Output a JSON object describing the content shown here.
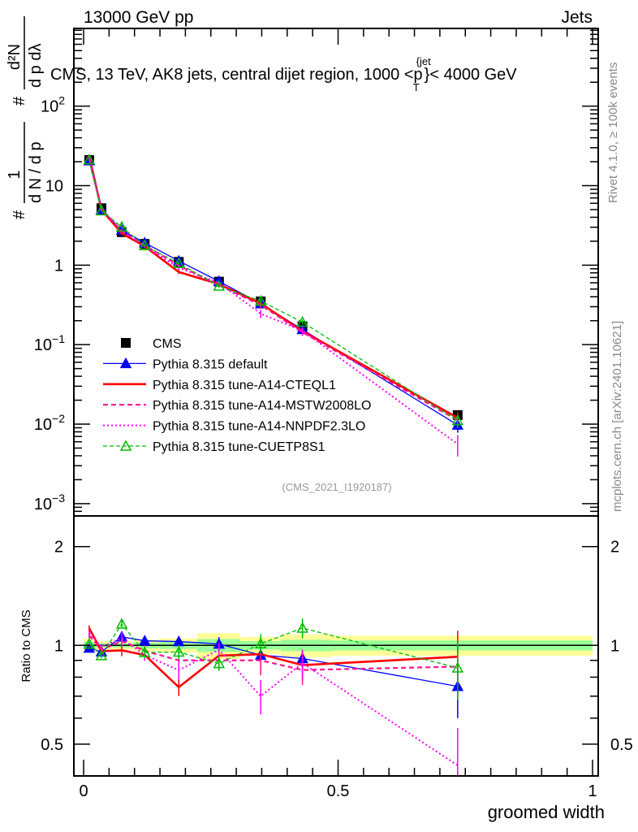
{
  "header": {
    "left": "13000 GeV pp",
    "right": "Jets"
  },
  "side_labels": {
    "rivet": "Rivet 4.1.0, ≥ 100k events",
    "mcplots": "mcplots.cern.ch [arXiv:2401.10621]"
  },
  "chart_data": [
    {
      "type": "line",
      "title": "CMS, 13 TeV, AK8 jets, central dijet region, 1000 <p_T^{jet}< 4000 GeV",
      "title_main": "CMS, 13 TeV, AK8 jets, central dijet region, 1000 <p",
      "title_sup": "{jet",
      "title_sub": "T",
      "title_end": "}< 4000 GeV",
      "ylabel_num": "1",
      "ylabel_den": "d N / d p",
      "ylabel_right_num": "d²N",
      "ylabel_right_den": "d p  dλ",
      "ylabel_hash": "#",
      "yscale": "log",
      "ylim": [
        0.0007,
        950
      ],
      "xlim": [
        -0.02,
        1.01
      ],
      "ytick_labels": [
        {
          "v": 0.001,
          "base": "10",
          "exp": "−3"
        },
        {
          "v": 0.01,
          "base": "10",
          "exp": "−2"
        },
        {
          "v": 0.1,
          "base": "10",
          "exp": "−1"
        },
        {
          "v": 1,
          "base": "1",
          "exp": ""
        },
        {
          "v": 10,
          "base": "10",
          "exp": ""
        },
        {
          "v": 100,
          "base": "10",
          "exp": "2"
        }
      ],
      "annotation": "(CMS_2021_I1920187)",
      "x": [
        0.011,
        0.035,
        0.075,
        0.12,
        0.187,
        0.266,
        0.348,
        0.43,
        0.735
      ],
      "bin_edges": [
        0,
        0.02,
        0.05,
        0.1,
        0.15,
        0.223,
        0.308,
        0.388,
        0.488,
        1.0
      ],
      "data": {
        "name": "CMS",
        "values": [
          21,
          5.2,
          2.6,
          1.85,
          1.1,
          0.62,
          0.35,
          0.17,
          0.013
        ],
        "band_yellow": [
          0.05,
          0.03,
          0.03,
          0.04,
          0.05,
          0.09,
          0.06,
          0.08,
          0.07
        ],
        "band_green": [
          0.025,
          0.015,
          0.015,
          0.02,
          0.025,
          0.045,
          0.03,
          0.04,
          0.035
        ]
      },
      "series": [
        {
          "name": "Pythia 8.315 default",
          "color": "#0000ff",
          "dash": "",
          "width": 1.3,
          "marker": "triangle-filled",
          "values": [
            20.6,
            4.97,
            2.76,
            1.91,
            1.13,
            0.626,
            0.327,
            0.155,
            0.00975
          ],
          "rel_err": [
            0.02,
            0.02,
            0.03,
            0.03,
            0.04,
            0.05,
            0.06,
            0.06,
            0.2
          ]
        },
        {
          "name": "Pythia 8.315 tune-A14-CTEQL1",
          "color": "#ff0000",
          "dash": "",
          "width": 2.6,
          "marker": "none",
          "values": [
            23.7,
            4.99,
            2.51,
            1.73,
            0.82,
            0.577,
            0.329,
            0.148,
            0.012
          ],
          "rel_err": [
            0.02,
            0.02,
            0.04,
            0.04,
            0.06,
            0.05,
            0.12,
            0.1,
            0.2
          ]
        },
        {
          "name": "Pythia 8.315 tune-A14-MSTW2008LO",
          "color": "#ff1493",
          "dash": "6,4",
          "width": 2.2,
          "marker": "none",
          "values": [
            22.5,
            5.04,
            2.68,
            1.78,
            0.99,
            0.558,
            0.315,
            0.143,
            0.0112
          ],
          "rel_err": [
            0.02,
            0.02,
            0.04,
            0.04,
            0.05,
            0.05,
            0.1,
            0.1,
            0.2
          ]
        },
        {
          "name": "Pythia 8.315 tune-A14-NNPDF2.3LO",
          "color": "#ff00ff",
          "dash": "2,3",
          "width": 2,
          "marker": "none",
          "values": [
            22.9,
            5.15,
            2.73,
            1.73,
            0.924,
            0.601,
            0.245,
            0.15,
            0.0056
          ],
          "rel_err": [
            0.02,
            0.02,
            0.04,
            0.04,
            0.06,
            0.05,
            0.12,
            0.1,
            0.3
          ]
        },
        {
          "name": "Pythia 8.315 tune-CUETP8S1",
          "color": "#00bb00",
          "dash": "5,3",
          "width": 1.3,
          "marker": "triangle-open",
          "values": [
            21.2,
            4.84,
            3.02,
            1.76,
            1.05,
            0.546,
            0.354,
            0.192,
            0.0111
          ],
          "rel_err": [
            0.02,
            0.02,
            0.03,
            0.04,
            0.05,
            0.05,
            0.07,
            0.07,
            0.2
          ]
        }
      ]
    },
    {
      "type": "line",
      "ylabel": "Ratio to CMS",
      "xlabel": "groomed width",
      "yscale": "log",
      "ylim": [
        0.4,
        2.48
      ],
      "ytick_labels": [
        {
          "v": 0.5,
          "label": "0.5"
        },
        {
          "v": 1,
          "label": "1"
        },
        {
          "v": 2,
          "label": "2"
        }
      ],
      "xtick_labels": [
        {
          "v": 0,
          "label": "0"
        },
        {
          "v": 0.5,
          "label": "0.5"
        },
        {
          "v": 1,
          "label": "1"
        }
      ]
    }
  ]
}
